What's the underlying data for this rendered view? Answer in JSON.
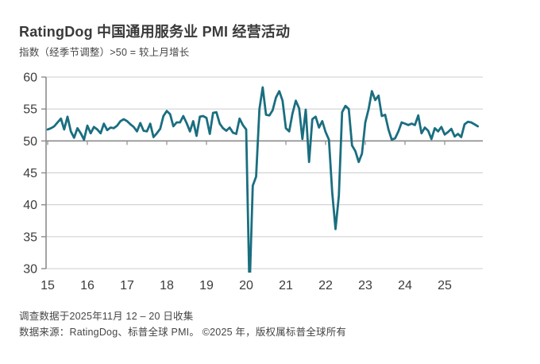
{
  "header": {
    "title": "RatingDog 中国通用服务业 PMI 经营活动",
    "subtitle": "指数（经季节调整）>50 = 较上月增长"
  },
  "footer": {
    "line1": "调查数据于2025年11月 12 – 20 日收集",
    "line2": "数据来源：RatingDog、标普全球 PMI。 ©2025 年，版权属标普全球所有"
  },
  "chart_data": {
    "type": "line",
    "title": "RatingDog 中国通用服务业 PMI 经营活动",
    "series_name": "服务业PMI经营活动指数",
    "frequency": "monthly",
    "x_start": "2015-01",
    "x_end": "2025-11",
    "ylim": [
      30,
      60
    ],
    "reference_line": 50,
    "grid": true,
    "legend_position": "none",
    "y_ticks": [
      60,
      55,
      50,
      45,
      40,
      35,
      30
    ],
    "x_tick_labels": [
      "15",
      "16",
      "17",
      "18",
      "19",
      "20",
      "21",
      "22",
      "23",
      "24",
      "25"
    ],
    "line_color": "#1a6e80",
    "grid_color": "#cccccc",
    "axis_color": "#8c8c8c",
    "label_color": "#3c3c3c",
    "values": [
      51.8,
      52.0,
      52.3,
      52.9,
      53.5,
      51.8,
      53.8,
      51.5,
      50.5,
      52.0,
      51.2,
      50.2,
      52.4,
      51.2,
      52.2,
      51.8,
      51.2,
      52.7,
      51.7,
      52.1,
      52.0,
      52.4,
      53.1,
      53.4,
      53.1,
      52.6,
      52.2,
      51.5,
      52.8,
      51.6,
      51.5,
      52.7,
      50.6,
      51.2,
      51.9,
      53.9,
      54.7,
      54.2,
      52.3,
      52.9,
      52.9,
      53.9,
      52.8,
      51.5,
      53.1,
      50.8,
      53.8,
      53.9,
      53.6,
      51.1,
      54.4,
      54.5,
      52.7,
      52.0,
      51.6,
      52.1,
      51.3,
      51.1,
      53.5,
      52.5,
      51.8,
      26.5,
      43.0,
      44.4,
      55.0,
      58.4,
      54.1,
      54.0,
      54.8,
      56.8,
      57.8,
      56.3,
      52.0,
      51.5,
      54.3,
      56.3,
      55.1,
      50.3,
      54.9,
      46.7,
      53.4,
      53.8,
      52.1,
      53.1,
      51.4,
      50.2,
      42.0,
      36.2,
      41.4,
      54.5,
      55.5,
      55.0,
      49.3,
      48.4,
      46.7,
      48.0,
      52.9,
      55.0,
      57.8,
      56.4,
      57.1,
      53.9,
      54.1,
      51.8,
      50.2,
      50.4,
      51.5,
      52.9,
      52.7,
      52.5,
      52.7,
      52.5,
      54.0,
      51.2,
      52.1,
      51.6,
      50.3,
      52.0,
      51.5,
      52.2,
      51.0,
      51.4,
      51.9,
      50.7,
      51.1,
      50.6,
      52.6,
      53.0,
      52.9,
      52.6,
      52.3
    ]
  }
}
